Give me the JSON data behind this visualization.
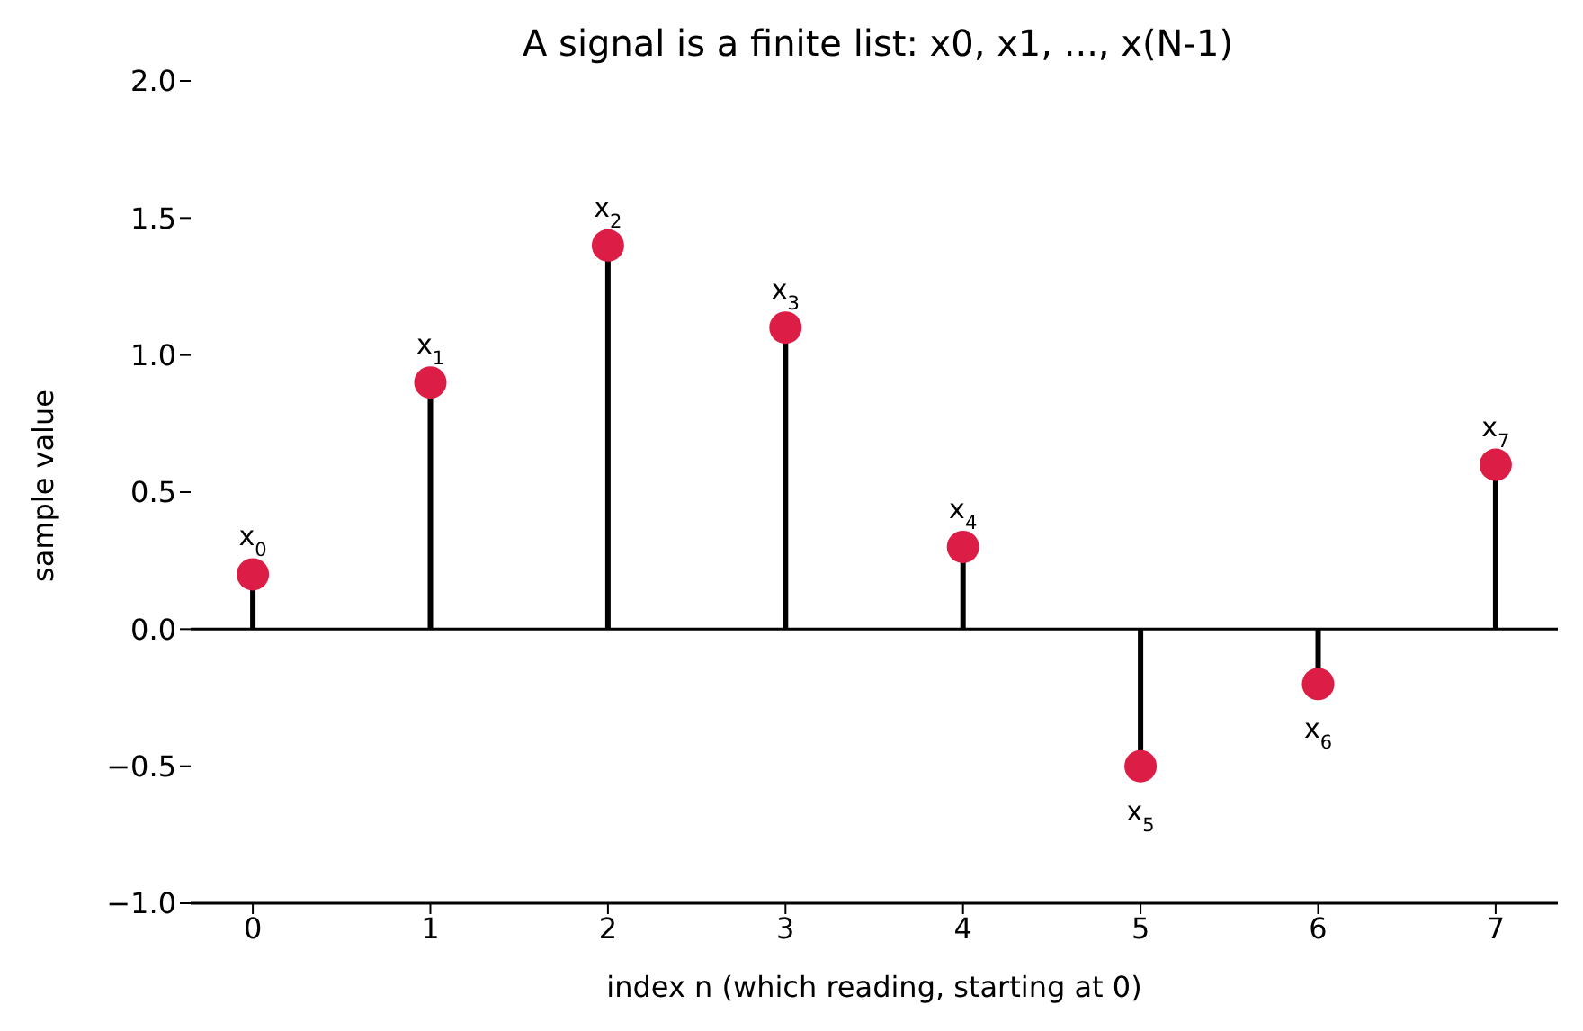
{
  "chart_data": {
    "type": "lollipop",
    "title": "A signal is a finite list: x0, x1, ..., x(N-1)",
    "xlabel": "index  n  (which reading, starting at 0)",
    "ylabel": "sample value",
    "x": [
      0,
      1,
      2,
      3,
      4,
      5,
      6,
      7
    ],
    "values": [
      0.2,
      0.9,
      1.4,
      1.1,
      0.3,
      -0.5,
      -0.2,
      0.6
    ],
    "annotations": [
      {
        "text": "x$_{0}$",
        "x": 0,
        "y": 0.2
      },
      {
        "text": "x$_{1}$",
        "x": 1,
        "y": 0.9
      },
      {
        "text": "x$_{2}$",
        "x": 2,
        "y": 1.4
      },
      {
        "text": "x$_{3}$",
        "x": 3,
        "y": 1.1
      },
      {
        "text": "x$_{4}$",
        "x": 4,
        "y": 0.3
      },
      {
        "text": "x$_{5}$",
        "x": 5,
        "y": -0.5
      },
      {
        "text": "x$_{6}$",
        "x": 6,
        "y": -0.2
      },
      {
        "text": "x$_{7}$",
        "x": 7,
        "y": 0.6
      }
    ],
    "color": "#dc1e46",
    "xlim": [
      -0.35,
      7.35
    ],
    "xticks": [
      0,
      1,
      2,
      3,
      4,
      5,
      6,
      7
    ],
    "ylim": [
      -1,
      2
    ],
    "yticks": [
      {
        "value": -1,
        "label": "−1.0"
      },
      {
        "value": -0.5,
        "label": "−0.5"
      },
      {
        "value": 0,
        "label": "0.0"
      },
      {
        "value": 0.5,
        "label": "0.5"
      },
      {
        "value": 1,
        "label": "1.0"
      },
      {
        "value": 1.5,
        "label": "1.5"
      },
      {
        "value": 2,
        "label": "2.0"
      }
    ],
    "ref_lines": [
      {
        "axis": "y",
        "value": 0,
        "color": "#000000"
      }
    ],
    "grid": false,
    "legend": false,
    "marker": "circle"
  }
}
